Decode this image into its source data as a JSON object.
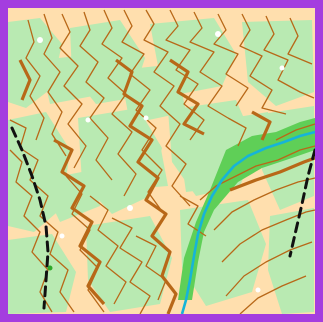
{
  "map": {
    "type": "orienteering-map-tile",
    "colors": {
      "background": "#ffffff",
      "frame": "#a43ddf",
      "open_land": "#ffdfae",
      "vegetation": "#b9eab2",
      "dense_vegetation": "#5fcf57",
      "contour": "#b86818",
      "stream": "#16b4d8",
      "track": "#111111"
    },
    "features": [
      "contour-lines",
      "index-contours",
      "stream",
      "vegetation-patches",
      "dashed-track",
      "boulder-dots"
    ]
  }
}
